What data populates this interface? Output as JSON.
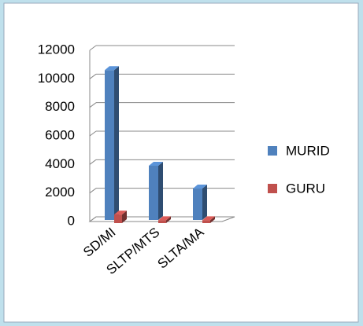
{
  "chart_data": {
    "type": "bar3d",
    "categories": [
      "SD/MI",
      "SLTP/MTS",
      "SLTA/MA"
    ],
    "series": [
      {
        "name": "MURID",
        "color": "#4f81bd",
        "values": [
          10500,
          3800,
          2200
        ]
      },
      {
        "name": "GURU",
        "color": "#c0504d",
        "values": [
          600,
          200,
          200
        ]
      }
    ],
    "ylim": [
      0,
      12000
    ],
    "yticks": [
      0,
      2000,
      4000,
      6000,
      8000,
      10000,
      12000
    ],
    "grid": true,
    "legend": "right"
  }
}
